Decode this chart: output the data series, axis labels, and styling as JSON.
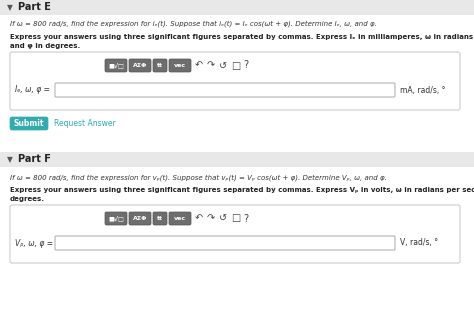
{
  "bg_color": "#f0f0f0",
  "white": "#ffffff",
  "teal": "#2eacb0",
  "light_gray": "#e8e8e8",
  "part_e_title": "Part E",
  "part_f_title": "Part F",
  "part_e_line1": "If ω = 800 rad/s, find the expression for iₑ(t). Suppose that iₑ(t) = Iₑ cos(ωt + φ). Determine Iₑ, ω, and φ.",
  "part_e_bold1": "Express your answers using three significant figures separated by commas. Express Iₑ in milliamperes, ω in radians per second,",
  "part_e_bold2": "and φ in degrees.",
  "part_e_label": "Iₑ, ω, φ =",
  "part_e_units": "mA, rad/s, °",
  "part_f_line1": "If ω = 800 rad/s, find the expression for vₚ(t). Suppose that vₚ(t) = Vₚ cos(ωt + φ). Determine Vₚ, ω, and φ.",
  "part_f_bold1": "Express your answers using three significant figures separated by commas. Express Vₚ in volts, ω in radians per second, and φ in",
  "part_f_bold2": "degrees.",
  "part_f_label": "Vₚ, ω, φ =",
  "part_f_units": "V, rad/s, °",
  "submit_text": "Submit",
  "request_text": "Request Answer",
  "btn1": "■√□",
  "btn2": "AΣΦ",
  "btn3": "tt",
  "btn4": "vec",
  "icon_undo": "↶",
  "icon_redo": "↷",
  "icon_refresh": "↺",
  "icon_img": "□",
  "icon_q": "?"
}
